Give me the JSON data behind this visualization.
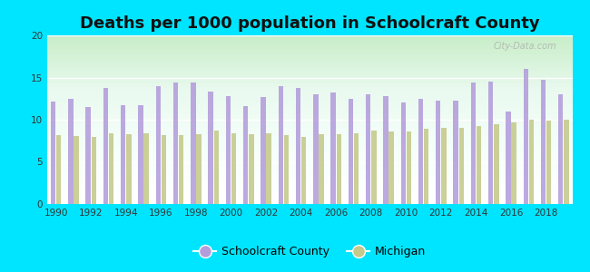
{
  "title": "Deaths per 1000 population in Schoolcraft County",
  "years": [
    1990,
    1991,
    1992,
    1993,
    1994,
    1995,
    1996,
    1997,
    1998,
    1999,
    2000,
    2001,
    2002,
    2003,
    2004,
    2005,
    2006,
    2007,
    2008,
    2009,
    2010,
    2011,
    2012,
    2013,
    2014,
    2015,
    2016,
    2017,
    2018,
    2019
  ],
  "schoolcraft": [
    12.2,
    12.5,
    11.5,
    13.8,
    11.7,
    11.7,
    14.0,
    14.4,
    14.4,
    13.3,
    12.8,
    11.6,
    12.7,
    14.0,
    13.8,
    13.0,
    13.2,
    12.5,
    13.0,
    12.8,
    12.0,
    12.5,
    12.3,
    12.3,
    14.4,
    14.5,
    11.0,
    16.0,
    14.7,
    13.0
  ],
  "michigan": [
    8.2,
    8.1,
    8.0,
    8.4,
    8.3,
    8.4,
    8.2,
    8.2,
    8.3,
    8.7,
    8.4,
    8.3,
    8.4,
    8.2,
    8.0,
    8.3,
    8.3,
    8.4,
    8.7,
    8.6,
    8.6,
    8.9,
    9.0,
    9.0,
    9.3,
    9.5,
    9.7,
    10.0,
    9.9,
    10.0
  ],
  "schoolcraft_color": "#b39ddb",
  "michigan_color": "#c5c98a",
  "background_outer": "#00e5ff",
  "ylim": [
    0,
    20
  ],
  "yticks": [
    0,
    5,
    10,
    15,
    20
  ],
  "bar_width": 0.28,
  "title_fontsize": 13,
  "legend_schoolcraft": "Schoolcraft County",
  "legend_michigan": "Michigan",
  "watermark": "City-Data.com"
}
